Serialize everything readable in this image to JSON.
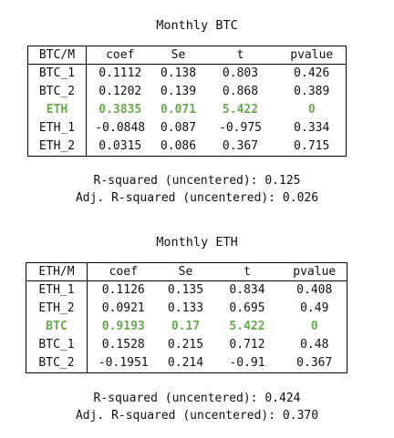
{
  "tables": [
    {
      "title": "Monthly BTC",
      "corner_label": "BTC/M",
      "columns": [
        "coef",
        "Se",
        "t",
        "pvalue"
      ],
      "rows": [
        {
          "label": "BTC_1",
          "values": [
            "0.1112",
            "0.138",
            "0.803",
            "0.426"
          ],
          "highlight": false
        },
        {
          "label": "BTC_2",
          "values": [
            "0.1202",
            "0.139",
            "0.868",
            "0.389"
          ],
          "highlight": false
        },
        {
          "label": "ETH",
          "values": [
            "0.3835",
            "0.071",
            "5.422",
            "0"
          ],
          "highlight": true
        },
        {
          "label": "ETH_1",
          "values": [
            "-0.0848",
            "0.087",
            "-0.975",
            "0.334"
          ],
          "highlight": false
        },
        {
          "label": "ETH_2",
          "values": [
            "0.0315",
            "0.086",
            "0.367",
            "0.715"
          ],
          "highlight": false
        }
      ],
      "r_squared": "R-squared (uncentered): 0.125",
      "adj_r_squared": "Adj. R-squared (uncentered): 0.026"
    },
    {
      "title": "Monthly ETH",
      "corner_label": "ETH/M",
      "columns": [
        "coef",
        "Se",
        "t",
        "pvalue"
      ],
      "rows": [
        {
          "label": "ETH_1",
          "values": [
            "0.1126",
            "0.135",
            "0.834",
            "0.408"
          ],
          "highlight": false
        },
        {
          "label": "ETH_2",
          "values": [
            "0.0921",
            "0.133",
            "0.695",
            "0.49"
          ],
          "highlight": false
        },
        {
          "label": "BTC",
          "values": [
            "0.9193",
            "0.17",
            "5.422",
            "0"
          ],
          "highlight": true
        },
        {
          "label": "BTC_1",
          "values": [
            "0.1528",
            "0.215",
            "0.712",
            "0.48"
          ],
          "highlight": false
        },
        {
          "label": "BTC_2",
          "values": [
            "-0.1951",
            "0.214",
            "-0.91",
            "0.367"
          ],
          "highlight": false
        }
      ],
      "r_squared": "R-squared (uncentered): 0.424",
      "adj_r_squared": "Adj. R-squared (uncentered): 0.370"
    }
  ],
  "colors": {
    "highlight": "#6aa84f",
    "text": "#111111",
    "border": "#000000"
  }
}
